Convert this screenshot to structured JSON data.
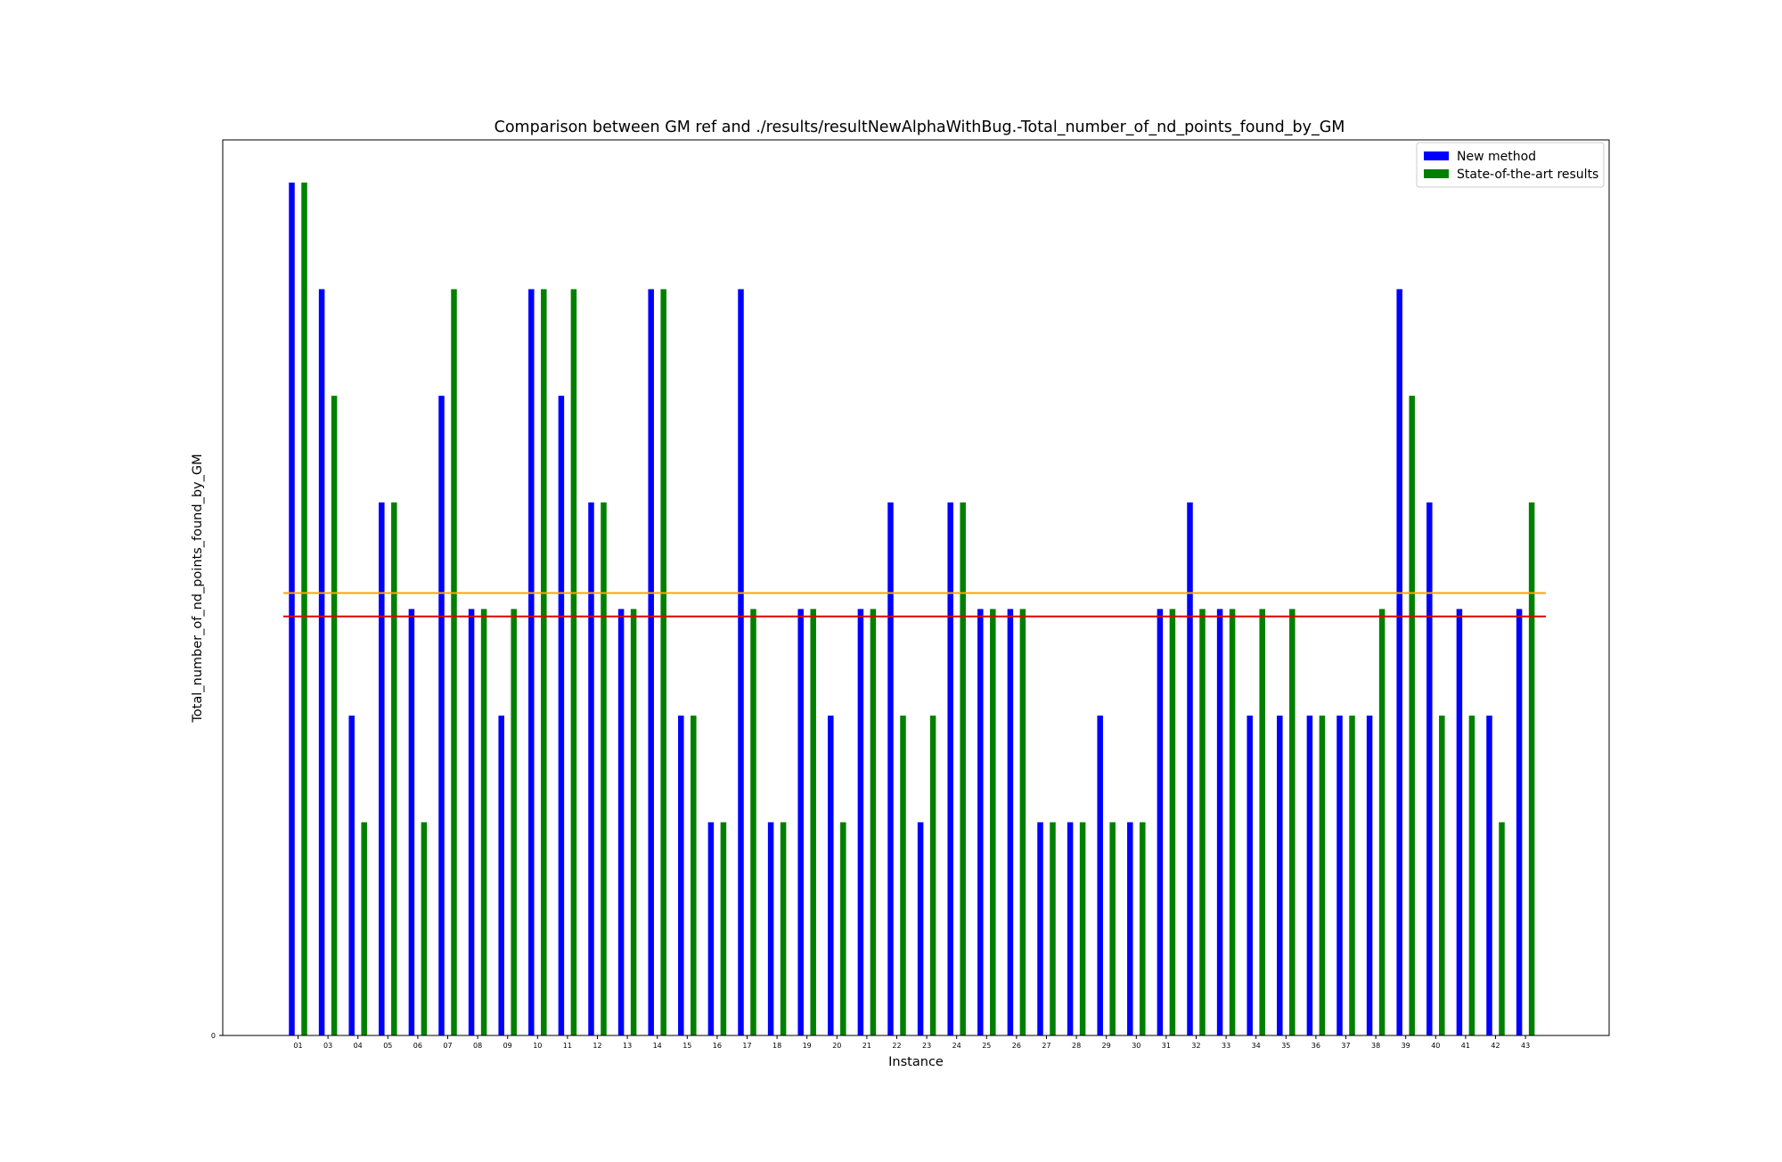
{
  "chart_data": {
    "type": "bar",
    "title": "Comparison between GM ref and ./results/resultNewAlphaWithBug.-Total_number_of_nd_points_found_by_GM",
    "xlabel": "Instance",
    "ylabel": "Total_number_of_nd_points_found_by_GM",
    "y_tick_labels": [
      "0"
    ],
    "ylim": [
      0,
      8.4
    ],
    "grid": false,
    "legend_position": "top-right",
    "categories": [
      "01",
      "03",
      "04",
      "05",
      "06",
      "07",
      "08",
      "09",
      "10",
      "11",
      "12",
      "13",
      "14",
      "15",
      "16",
      "17",
      "18",
      "19",
      "20",
      "21",
      "22",
      "23",
      "24",
      "25",
      "26",
      "27",
      "28",
      "29",
      "30",
      "31",
      "32",
      "33",
      "34",
      "35",
      "36",
      "37",
      "38",
      "39",
      "40",
      "41",
      "42",
      "43"
    ],
    "series": [
      {
        "name": "New method",
        "color": "#0000ff",
        "values": [
          8,
          7,
          3,
          5,
          4,
          6,
          4,
          3,
          7,
          6,
          5,
          4,
          7,
          3,
          2,
          7,
          2,
          4,
          3,
          4,
          5,
          2,
          5,
          4,
          4,
          2,
          2,
          3,
          2,
          4,
          5,
          4,
          3,
          3,
          3,
          3,
          3,
          7,
          5,
          4,
          3,
          4
        ]
      },
      {
        "name": "State-of-the-art results",
        "color": "#008000",
        "values": [
          8,
          6,
          2,
          5,
          2,
          7,
          4,
          4,
          7,
          7,
          5,
          4,
          7,
          3,
          2,
          4,
          2,
          4,
          2,
          4,
          3,
          3,
          5,
          4,
          4,
          2,
          2,
          2,
          2,
          4,
          4,
          4,
          4,
          4,
          3,
          3,
          4,
          6,
          3,
          3,
          2,
          5
        ]
      }
    ],
    "reference_lines": [
      {
        "value": 4.15,
        "color": "#ffa500"
      },
      {
        "value": 3.93,
        "color": "#e00000"
      }
    ]
  }
}
